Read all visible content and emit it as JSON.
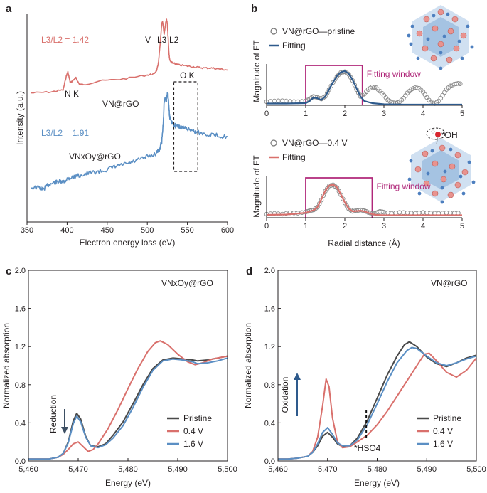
{
  "colors": {
    "red": "#d9706c",
    "blue": "#5b8fc4",
    "dark_blue": "#2e5a8c",
    "gray": "#4a4a4a",
    "magenta": "#b0287a",
    "axis": "#231f20"
  },
  "chart_data": [
    {
      "panel": "a",
      "type": "line",
      "xlabel": "Electron energy loss (eV)",
      "ylabel": "Intensity (a.u.)",
      "xlim": [
        350,
        600
      ],
      "xticks": [
        350,
        400,
        450,
        500,
        550,
        600
      ],
      "ylim": [
        0,
        10
      ],
      "annotations": {
        "ratio_red": "L3/L2 = 1.42",
        "ratio_blue": "L3/L2 = 1.91",
        "nk": "N K",
        "v": "V",
        "l3": "L3",
        "l2": "L2",
        "ok": "O K",
        "vn_label": "VN@rGO",
        "vnxoy_label": "VNxOy@rGO"
      },
      "series": [
        {
          "name": "VN@rGO",
          "color": "red",
          "x": [
            355,
            380,
            395,
            399,
            401,
            404,
            408,
            411,
            415,
            420,
            440,
            470,
            500,
            508,
            512,
            514,
            516,
            518,
            519,
            520,
            521,
            523,
            524,
            525,
            526,
            527,
            528,
            530,
            532,
            535,
            540,
            550,
            560,
            570,
            580,
            590,
            600
          ],
          "y": [
            6.05,
            6.1,
            6.2,
            6.9,
            7.1,
            6.55,
            6.7,
            6.8,
            6.5,
            6.45,
            6.65,
            6.75,
            6.95,
            7.0,
            7.2,
            7.6,
            8.5,
            9.5,
            9.65,
            9.3,
            9.0,
            9.6,
            9.75,
            9.5,
            8.8,
            8.0,
            7.7,
            7.6,
            7.55,
            7.5,
            7.45,
            7.4,
            7.35,
            7.3,
            7.3,
            7.25,
            7.2
          ]
        },
        {
          "name": "VNxOy@rGO",
          "color": "blue",
          "x": [
            355,
            365,
            370,
            375,
            380,
            385,
            390,
            395,
            400,
            405,
            410,
            420,
            430,
            440,
            450,
            460,
            470,
            480,
            490,
            500,
            510,
            515,
            518,
            520,
            521,
            523,
            524,
            525,
            526,
            527,
            528,
            530,
            532,
            535,
            540,
            545,
            550,
            555,
            560,
            570,
            580,
            590,
            600
          ],
          "y": [
            1.3,
            1.3,
            1.2,
            1.4,
            1.5,
            1.55,
            1.6,
            1.55,
            1.75,
            1.8,
            1.85,
            1.95,
            2.05,
            2.1,
            2.2,
            2.35,
            2.45,
            2.55,
            2.7,
            2.85,
            3.0,
            3.2,
            3.6,
            4.6,
            5.6,
            5.8,
            5.7,
            6.0,
            5.9,
            5.3,
            4.8,
            4.55,
            4.5,
            4.4,
            4.35,
            4.3,
            4.25,
            4.2,
            4.1,
            4.0,
            3.95,
            3.9,
            3.85
          ]
        }
      ],
      "box_x": [
        533,
        563
      ]
    },
    {
      "panel": "b-top",
      "type": "line",
      "ylabel": "Magnitude of FT",
      "xlim": [
        0,
        5
      ],
      "xticks": [
        0,
        1,
        2,
        3,
        4,
        5
      ],
      "ylim": [
        0,
        1.25
      ],
      "window": [
        1.0,
        2.45
      ],
      "window_label": "Fitting window",
      "legend": {
        "data": "VN@rGO—pristine",
        "fit": "Fitting"
      },
      "series": [
        {
          "name": "VN@rGO—pristine",
          "style": "circles",
          "color": "gray",
          "x": [
            0,
            0.2,
            0.4,
            0.6,
            0.8,
            1.0,
            1.1,
            1.2,
            1.3,
            1.4,
            1.5,
            1.6,
            1.7,
            1.8,
            1.9,
            2.0,
            2.1,
            2.2,
            2.3,
            2.4,
            2.5,
            2.6,
            2.7,
            2.8,
            2.9,
            3.0,
            3.1,
            3.2,
            3.3,
            3.4,
            3.5,
            3.6,
            3.7,
            3.8,
            3.9,
            4.0,
            4.1,
            4.2,
            4.3,
            4.4,
            4.5,
            4.6,
            4.7,
            4.8,
            4.9,
            5.0
          ],
          "y": [
            0.1,
            0.12,
            0.13,
            0.11,
            0.1,
            0.12,
            0.18,
            0.25,
            0.22,
            0.18,
            0.25,
            0.45,
            0.65,
            0.82,
            0.93,
            0.95,
            0.88,
            0.7,
            0.45,
            0.25,
            0.32,
            0.45,
            0.52,
            0.5,
            0.4,
            0.28,
            0.15,
            0.08,
            0.06,
            0.1,
            0.2,
            0.35,
            0.45,
            0.5,
            0.48,
            0.38,
            0.22,
            0.08,
            0.05,
            0.12,
            0.28,
            0.45,
            0.55,
            0.6,
            0.62,
            0.6
          ]
        },
        {
          "name": "Fitting",
          "style": "line",
          "color": "dark_blue",
          "x": [
            0,
            0.5,
            1.0,
            1.1,
            1.2,
            1.3,
            1.4,
            1.5,
            1.6,
            1.7,
            1.8,
            1.9,
            2.0,
            2.1,
            2.2,
            2.3,
            2.4,
            2.5,
            2.7,
            3.0,
            3.5,
            4.0,
            4.5,
            5.0
          ],
          "y": [
            0.05,
            0.05,
            0.06,
            0.12,
            0.22,
            0.2,
            0.15,
            0.25,
            0.45,
            0.66,
            0.83,
            0.94,
            0.97,
            0.9,
            0.72,
            0.48,
            0.25,
            0.12,
            0.06,
            0.03,
            0.02,
            0.02,
            0.02,
            0.02
          ]
        }
      ]
    },
    {
      "panel": "b-bottom",
      "type": "line",
      "xlabel": "Radial distance (Å)",
      "ylabel": "Magnitude of FT",
      "xlim": [
        0,
        5
      ],
      "xticks": [
        0,
        1,
        2,
        3,
        4,
        5
      ],
      "ylim": [
        0,
        1.25
      ],
      "window": [
        1.0,
        2.7
      ],
      "window_label": "Fitting window",
      "adsorbate_label": "*OH",
      "legend": {
        "data": "VN@rGO—0.4 V",
        "fit": "Fitting"
      },
      "series": [
        {
          "name": "VN@rGO—0.4 V",
          "style": "circles",
          "color": "gray",
          "x": [
            0,
            0.2,
            0.4,
            0.6,
            0.8,
            1.0,
            1.1,
            1.2,
            1.3,
            1.4,
            1.5,
            1.6,
            1.7,
            1.8,
            1.9,
            2.0,
            2.1,
            2.2,
            2.3,
            2.4,
            2.5,
            2.6,
            2.7,
            2.8,
            2.9,
            3.0,
            3.2,
            3.4,
            3.6,
            3.8,
            4.0,
            4.2,
            4.4,
            4.6,
            4.8,
            5.0
          ],
          "y": [
            0.1,
            0.12,
            0.1,
            0.14,
            0.13,
            0.16,
            0.2,
            0.22,
            0.3,
            0.5,
            0.75,
            0.9,
            0.93,
            0.85,
            0.65,
            0.42,
            0.25,
            0.18,
            0.2,
            0.22,
            0.2,
            0.15,
            0.12,
            0.14,
            0.18,
            0.16,
            0.12,
            0.15,
            0.14,
            0.12,
            0.15,
            0.13,
            0.12,
            0.14,
            0.13,
            0.13
          ]
        },
        {
          "name": "Fitting",
          "style": "line",
          "color": "red",
          "x": [
            0,
            0.5,
            1.0,
            1.1,
            1.2,
            1.3,
            1.4,
            1.5,
            1.6,
            1.7,
            1.8,
            1.9,
            2.0,
            2.1,
            2.2,
            2.3,
            2.4,
            2.5,
            2.6,
            2.7,
            2.8,
            3.0,
            3.5,
            4.0,
            4.5,
            5.0
          ],
          "y": [
            0.08,
            0.09,
            0.14,
            0.18,
            0.21,
            0.3,
            0.52,
            0.76,
            0.91,
            0.94,
            0.86,
            0.66,
            0.43,
            0.26,
            0.18,
            0.19,
            0.2,
            0.18,
            0.14,
            0.1,
            0.08,
            0.07,
            0.07,
            0.07,
            0.07,
            0.07
          ]
        }
      ]
    },
    {
      "panel": "c",
      "type": "line",
      "xlabel": "Energy (eV)",
      "ylabel": "Normalized absorption",
      "xlim": [
        5460,
        5500
      ],
      "xticks": [
        5460,
        5470,
        5480,
        5490,
        5500
      ],
      "ylim": [
        0,
        2.0
      ],
      "yticks": [
        0,
        0.4,
        0.8,
        1.2,
        1.6,
        2.0
      ],
      "sample_label": "VNxOy@rGO",
      "arrow_label": "Reduction",
      "series": [
        {
          "name": "Pristine",
          "color": "gray",
          "x": [
            5460,
            5462,
            5464,
            5466,
            5467,
            5468,
            5469,
            5469.7,
            5470.5,
            5471.5,
            5472.5,
            5474,
            5475.5,
            5477,
            5479,
            5481,
            5483,
            5485,
            5487,
            5489,
            5491,
            5493,
            5494,
            5496,
            5498,
            5500
          ],
          "y": [
            0.02,
            0.02,
            0.02,
            0.04,
            0.08,
            0.2,
            0.42,
            0.5,
            0.44,
            0.26,
            0.16,
            0.15,
            0.18,
            0.27,
            0.41,
            0.6,
            0.8,
            0.97,
            1.06,
            1.08,
            1.07,
            1.06,
            1.05,
            1.06,
            1.08,
            1.1
          ]
        },
        {
          "name": "0.4 V",
          "color": "red",
          "x": [
            5460,
            5462,
            5464,
            5466,
            5467,
            5468,
            5469,
            5470,
            5471,
            5472,
            5473,
            5474,
            5476,
            5478,
            5480,
            5482,
            5484,
            5485.5,
            5486.5,
            5488,
            5490,
            5492,
            5493.5,
            5495,
            5497,
            5500
          ],
          "y": [
            0.02,
            0.02,
            0.02,
            0.04,
            0.07,
            0.12,
            0.18,
            0.2,
            0.15,
            0.1,
            0.12,
            0.18,
            0.34,
            0.54,
            0.76,
            0.97,
            1.15,
            1.24,
            1.26,
            1.22,
            1.12,
            1.04,
            1.01,
            1.03,
            1.07,
            1.1
          ]
        },
        {
          "name": "1.6 V",
          "color": "blue",
          "x": [
            5460,
            5462,
            5464,
            5466,
            5467,
            5468,
            5469,
            5469.7,
            5470.5,
            5471.5,
            5472.5,
            5474,
            5475.5,
            5477,
            5479,
            5481,
            5483,
            5485,
            5487,
            5489,
            5491,
            5493,
            5494,
            5496,
            5498,
            5500
          ],
          "y": [
            0.02,
            0.02,
            0.02,
            0.04,
            0.08,
            0.19,
            0.39,
            0.47,
            0.41,
            0.25,
            0.16,
            0.14,
            0.17,
            0.24,
            0.37,
            0.56,
            0.77,
            0.95,
            1.05,
            1.07,
            1.06,
            1.04,
            1.02,
            1.03,
            1.05,
            1.08
          ]
        }
      ]
    },
    {
      "panel": "d",
      "type": "line",
      "xlabel": "Energy (eV)",
      "ylabel": "Normalized absorption",
      "xlim": [
        5460,
        5500
      ],
      "xticks": [
        5460,
        5470,
        5480,
        5490,
        5500
      ],
      "ylim": [
        0,
        2.0
      ],
      "yticks": [
        0,
        0.4,
        0.8,
        1.2,
        1.6,
        2.0
      ],
      "sample_label": "VN@rGO",
      "arrow_label": "Oxidation",
      "marker_label": "*HSO4",
      "marker_x": 5477.8,
      "series": [
        {
          "name": "Pristine",
          "color": "gray",
          "x": [
            5460,
            5462,
            5464,
            5466,
            5467,
            5468,
            5469,
            5470,
            5471,
            5472,
            5473,
            5474.5,
            5476,
            5478,
            5480,
            5482,
            5484,
            5485.5,
            5486.5,
            5488,
            5490,
            5492,
            5494,
            5496,
            5498,
            5500
          ],
          "y": [
            0.02,
            0.02,
            0.03,
            0.05,
            0.09,
            0.16,
            0.26,
            0.3,
            0.25,
            0.18,
            0.15,
            0.16,
            0.24,
            0.42,
            0.66,
            0.9,
            1.1,
            1.22,
            1.25,
            1.2,
            1.09,
            1.02,
            0.99,
            1.03,
            1.08,
            1.11
          ]
        },
        {
          "name": "0.4 V",
          "color": "red",
          "x": [
            5460,
            5462,
            5464,
            5466,
            5467,
            5468,
            5469,
            5469.7,
            5470.3,
            5471,
            5472,
            5473,
            5474.5,
            5476,
            5478,
            5480,
            5482,
            5484,
            5486,
            5488,
            5489.5,
            5490.5,
            5492,
            5494,
            5496,
            5498,
            5500
          ],
          "y": [
            0.02,
            0.02,
            0.03,
            0.05,
            0.1,
            0.25,
            0.58,
            0.86,
            0.78,
            0.45,
            0.2,
            0.14,
            0.15,
            0.2,
            0.27,
            0.38,
            0.52,
            0.68,
            0.84,
            1.0,
            1.12,
            1.13,
            1.05,
            0.93,
            0.88,
            0.95,
            1.08
          ]
        },
        {
          "name": "1.6 V",
          "color": "blue",
          "x": [
            5460,
            5462,
            5464,
            5466,
            5467,
            5468,
            5469,
            5470,
            5471,
            5472,
            5473,
            5474.5,
            5476,
            5478,
            5480,
            5482,
            5484,
            5486,
            5487,
            5488,
            5490,
            5492,
            5494,
            5496,
            5498,
            5500
          ],
          "y": [
            0.02,
            0.02,
            0.03,
            0.05,
            0.09,
            0.18,
            0.3,
            0.35,
            0.28,
            0.19,
            0.16,
            0.16,
            0.22,
            0.38,
            0.6,
            0.83,
            1.03,
            1.16,
            1.19,
            1.18,
            1.1,
            1.03,
            1.0,
            1.03,
            1.07,
            1.1
          ]
        }
      ]
    }
  ],
  "panels": {
    "a": {
      "label": "a"
    },
    "b": {
      "label": "b"
    },
    "c": {
      "label": "c",
      "legend": [
        "Pristine",
        "0.4 V",
        "1.6 V"
      ]
    },
    "d": {
      "label": "d",
      "legend": [
        "Pristine",
        "0.4 V",
        "1.6 V"
      ]
    }
  }
}
